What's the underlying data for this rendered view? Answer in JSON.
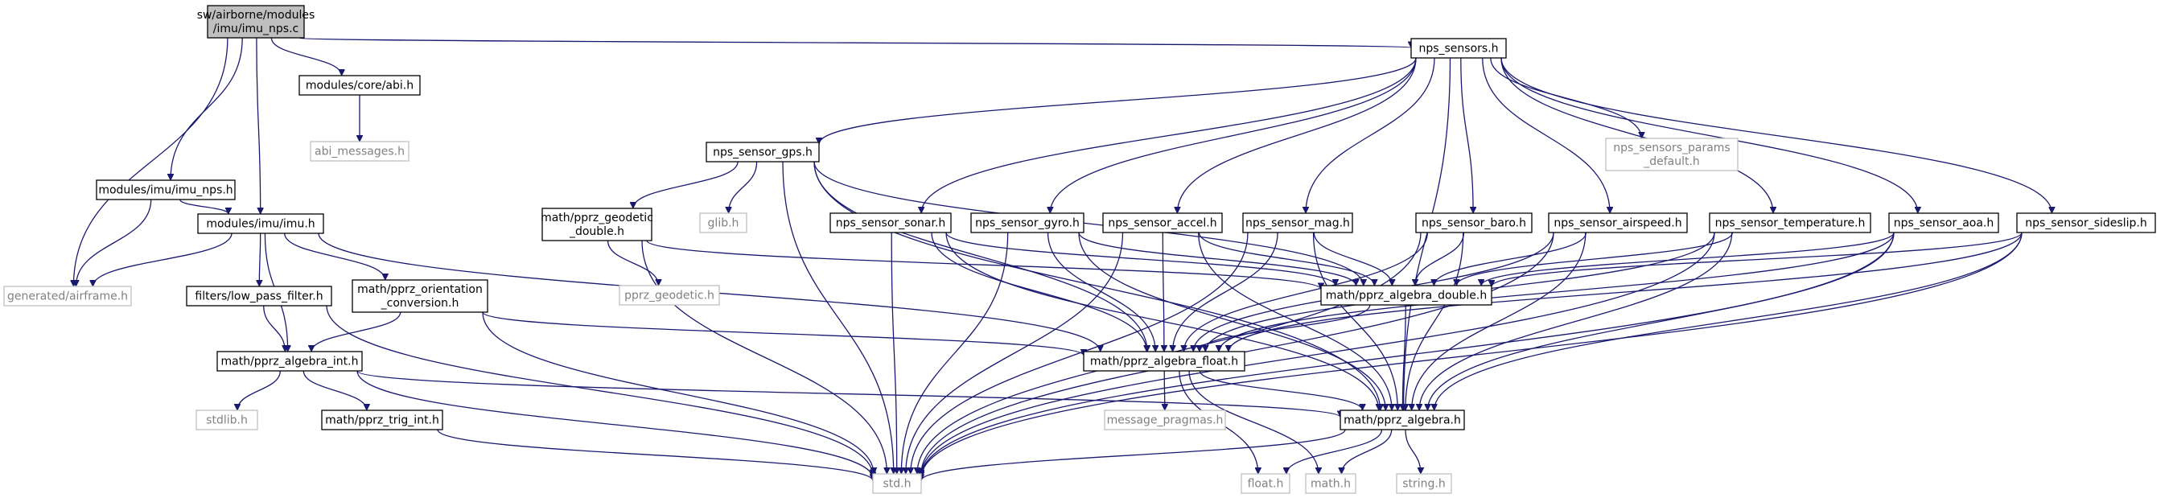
{
  "colors": {
    "edge": "#191970",
    "root_fill": "#bfbfbf",
    "normal_border": "#000000",
    "missing_border": "#bfbfbf",
    "missing_text": "#808080",
    "text": "#000000"
  },
  "nodes": [
    {
      "id": "imu_nps_c",
      "lines": [
        "sw/airborne/modules",
        "/imu/imu_nps.c"
      ],
      "kind": "root"
    },
    {
      "id": "core_abi",
      "lines": [
        "modules/core/abi.h"
      ],
      "kind": "normal"
    },
    {
      "id": "abi_messages",
      "lines": [
        "abi_messages.h"
      ],
      "kind": "missing"
    },
    {
      "id": "imu_nps_h",
      "lines": [
        "modules/imu/imu_nps.h"
      ],
      "kind": "normal"
    },
    {
      "id": "imu_h",
      "lines": [
        "modules/imu/imu.h"
      ],
      "kind": "normal"
    },
    {
      "id": "airframe",
      "lines": [
        "generated/airframe.h"
      ],
      "kind": "missing"
    },
    {
      "id": "low_pass",
      "lines": [
        "filters/low_pass_filter.h"
      ],
      "kind": "normal"
    },
    {
      "id": "orientation",
      "lines": [
        "math/pprz_orientation",
        "_conversion.h"
      ],
      "kind": "normal"
    },
    {
      "id": "algebra_int",
      "lines": [
        "math/pprz_algebra_int.h"
      ],
      "kind": "normal"
    },
    {
      "id": "stdlib",
      "lines": [
        "stdlib.h"
      ],
      "kind": "missing"
    },
    {
      "id": "trig_int",
      "lines": [
        "math/pprz_trig_int.h"
      ],
      "kind": "normal"
    },
    {
      "id": "nps_sensors",
      "lines": [
        "nps_sensors.h"
      ],
      "kind": "normal"
    },
    {
      "id": "sensor_gps",
      "lines": [
        "nps_sensor_gps.h"
      ],
      "kind": "normal"
    },
    {
      "id": "geodetic_double",
      "lines": [
        "math/pprz_geodetic",
        "_double.h"
      ],
      "kind": "normal"
    },
    {
      "id": "glib",
      "lines": [
        "glib.h"
      ],
      "kind": "missing"
    },
    {
      "id": "pprz_geodetic",
      "lines": [
        "pprz_geodetic.h"
      ],
      "kind": "missing"
    },
    {
      "id": "params_default",
      "lines": [
        "nps_sensors_params",
        "_default.h"
      ],
      "kind": "missing"
    },
    {
      "id": "sensor_sonar",
      "lines": [
        "nps_sensor_sonar.h"
      ],
      "kind": "normal"
    },
    {
      "id": "sensor_gyro",
      "lines": [
        "nps_sensor_gyro.h"
      ],
      "kind": "normal"
    },
    {
      "id": "sensor_accel",
      "lines": [
        "nps_sensor_accel.h"
      ],
      "kind": "normal"
    },
    {
      "id": "sensor_mag",
      "lines": [
        "nps_sensor_mag.h"
      ],
      "kind": "normal"
    },
    {
      "id": "sensor_baro",
      "lines": [
        "nps_sensor_baro.h"
      ],
      "kind": "normal"
    },
    {
      "id": "sensor_airspeed",
      "lines": [
        "nps_sensor_airspeed.h"
      ],
      "kind": "normal"
    },
    {
      "id": "sensor_temperature",
      "lines": [
        "nps_sensor_temperature.h"
      ],
      "kind": "normal"
    },
    {
      "id": "sensor_aoa",
      "lines": [
        "nps_sensor_aoa.h"
      ],
      "kind": "normal"
    },
    {
      "id": "sensor_sideslip",
      "lines": [
        "nps_sensor_sideslip.h"
      ],
      "kind": "normal"
    },
    {
      "id": "algebra_double",
      "lines": [
        "math/pprz_algebra_double.h"
      ],
      "kind": "normal"
    },
    {
      "id": "algebra_float",
      "lines": [
        "math/pprz_algebra_float.h"
      ],
      "kind": "normal"
    },
    {
      "id": "message_pragmas",
      "lines": [
        "message_pragmas.h"
      ],
      "kind": "missing"
    },
    {
      "id": "algebra",
      "lines": [
        "math/pprz_algebra.h"
      ],
      "kind": "normal"
    },
    {
      "id": "std",
      "lines": [
        "std.h"
      ],
      "kind": "missing"
    },
    {
      "id": "float_h",
      "lines": [
        "float.h"
      ],
      "kind": "missing"
    },
    {
      "id": "math_h",
      "lines": [
        "math.h"
      ],
      "kind": "missing"
    },
    {
      "id": "string_h",
      "lines": [
        "string.h"
      ],
      "kind": "missing"
    }
  ],
  "edges": [
    [
      "imu_nps_c",
      "core_abi"
    ],
    [
      "imu_nps_c",
      "imu_nps_h"
    ],
    [
      "imu_nps_c",
      "imu_h"
    ],
    [
      "imu_nps_c",
      "airframe"
    ],
    [
      "imu_nps_c",
      "nps_sensors"
    ],
    [
      "core_abi",
      "abi_messages"
    ],
    [
      "imu_nps_h",
      "imu_h"
    ],
    [
      "imu_nps_h",
      "airframe"
    ],
    [
      "imu_h",
      "airframe"
    ],
    [
      "imu_h",
      "low_pass"
    ],
    [
      "imu_h",
      "orientation"
    ],
    [
      "imu_h",
      "algebra_int"
    ],
    [
      "imu_h",
      "algebra_float"
    ],
    [
      "low_pass",
      "algebra_int"
    ],
    [
      "low_pass",
      "std"
    ],
    [
      "orientation",
      "algebra_int"
    ],
    [
      "orientation",
      "algebra_float"
    ],
    [
      "orientation",
      "std"
    ],
    [
      "algebra_int",
      "stdlib"
    ],
    [
      "algebra_int",
      "trig_int"
    ],
    [
      "algebra_int",
      "algebra"
    ],
    [
      "algebra_int",
      "std"
    ],
    [
      "trig_int",
      "std"
    ],
    [
      "nps_sensors",
      "sensor_gps"
    ],
    [
      "nps_sensors",
      "params_default"
    ],
    [
      "nps_sensors",
      "sensor_sonar"
    ],
    [
      "nps_sensors",
      "sensor_gyro"
    ],
    [
      "nps_sensors",
      "sensor_accel"
    ],
    [
      "nps_sensors",
      "sensor_mag"
    ],
    [
      "nps_sensors",
      "sensor_baro"
    ],
    [
      "nps_sensors",
      "sensor_airspeed"
    ],
    [
      "nps_sensors",
      "sensor_temperature"
    ],
    [
      "nps_sensors",
      "sensor_aoa"
    ],
    [
      "nps_sensors",
      "sensor_sideslip"
    ],
    [
      "nps_sensors",
      "algebra"
    ],
    [
      "sensor_gps",
      "geodetic_double"
    ],
    [
      "sensor_gps",
      "glib"
    ],
    [
      "sensor_gps",
      "algebra_double"
    ],
    [
      "sensor_gps",
      "algebra_float"
    ],
    [
      "sensor_gps",
      "algebra"
    ],
    [
      "sensor_gps",
      "std"
    ],
    [
      "geodetic_double",
      "pprz_geodetic"
    ],
    [
      "geodetic_double",
      "algebra_double"
    ],
    [
      "geodetic_double",
      "std"
    ],
    [
      "sensor_sonar",
      "algebra_double"
    ],
    [
      "sensor_sonar",
      "algebra_float"
    ],
    [
      "sensor_sonar",
      "algebra"
    ],
    [
      "sensor_sonar",
      "std"
    ],
    [
      "sensor_gyro",
      "algebra_double"
    ],
    [
      "sensor_gyro",
      "algebra_float"
    ],
    [
      "sensor_gyro",
      "algebra"
    ],
    [
      "sensor_gyro",
      "std"
    ],
    [
      "sensor_accel",
      "algebra_double"
    ],
    [
      "sensor_accel",
      "algebra_float"
    ],
    [
      "sensor_accel",
      "algebra"
    ],
    [
      "sensor_accel",
      "std"
    ],
    [
      "sensor_mag",
      "algebra_double"
    ],
    [
      "sensor_mag",
      "algebra_float"
    ],
    [
      "sensor_mag",
      "algebra"
    ],
    [
      "sensor_mag",
      "std"
    ],
    [
      "sensor_baro",
      "algebra_double"
    ],
    [
      "sensor_baro",
      "algebra_float"
    ],
    [
      "sensor_baro",
      "algebra"
    ],
    [
      "sensor_baro",
      "std"
    ],
    [
      "sensor_airspeed",
      "algebra_double"
    ],
    [
      "sensor_airspeed",
      "algebra_float"
    ],
    [
      "sensor_airspeed",
      "algebra"
    ],
    [
      "sensor_airspeed",
      "std"
    ],
    [
      "sensor_temperature",
      "algebra_double"
    ],
    [
      "sensor_temperature",
      "algebra_float"
    ],
    [
      "sensor_temperature",
      "algebra"
    ],
    [
      "sensor_temperature",
      "std"
    ],
    [
      "sensor_aoa",
      "algebra_double"
    ],
    [
      "sensor_aoa",
      "algebra_float"
    ],
    [
      "sensor_aoa",
      "algebra"
    ],
    [
      "sensor_aoa",
      "std"
    ],
    [
      "sensor_sideslip",
      "algebra_double"
    ],
    [
      "sensor_sideslip",
      "algebra_float"
    ],
    [
      "sensor_sideslip",
      "algebra"
    ],
    [
      "sensor_sideslip",
      "std"
    ],
    [
      "algebra_double",
      "algebra_float"
    ],
    [
      "algebra_double",
      "algebra"
    ],
    [
      "algebra_float",
      "message_pragmas"
    ],
    [
      "algebra_float",
      "algebra"
    ],
    [
      "algebra_float",
      "float_h"
    ],
    [
      "algebra_float",
      "math_h"
    ],
    [
      "algebra",
      "std"
    ],
    [
      "algebra",
      "float_h"
    ],
    [
      "algebra",
      "math_h"
    ],
    [
      "algebra",
      "string_h"
    ]
  ]
}
